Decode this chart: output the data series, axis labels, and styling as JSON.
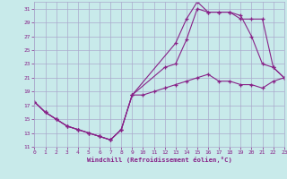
{
  "xlabel": "Windchill (Refroidissement éolien,°C)",
  "bg_color": "#c8eaea",
  "grid_color": "#aaaacc",
  "line_color": "#882288",
  "xlim": [
    0,
    23
  ],
  "ylim": [
    11,
    32
  ],
  "xticks": [
    0,
    1,
    2,
    3,
    4,
    5,
    6,
    7,
    8,
    9,
    10,
    11,
    12,
    13,
    14,
    15,
    16,
    17,
    18,
    19,
    20,
    21,
    22,
    23
  ],
  "yticks": [
    11,
    13,
    15,
    17,
    19,
    21,
    23,
    25,
    27,
    29,
    31
  ],
  "line1_x": [
    0,
    1,
    2,
    3,
    4,
    5,
    6,
    7,
    8,
    9,
    13,
    14,
    15,
    16,
    17,
    18,
    19,
    20,
    21,
    22,
    23
  ],
  "line1_y": [
    17.5,
    16.0,
    15.0,
    14.0,
    13.5,
    13.0,
    12.5,
    12.0,
    13.5,
    18.5,
    26.0,
    29.5,
    32.0,
    30.5,
    30.5,
    30.5,
    29.5,
    29.5,
    29.5,
    22.5,
    21.0
  ],
  "line2_x": [
    0,
    1,
    2,
    3,
    4,
    5,
    6,
    7,
    8,
    9,
    12,
    13,
    14,
    15,
    16,
    17,
    18,
    19,
    20,
    21,
    22,
    23
  ],
  "line2_y": [
    17.5,
    16.0,
    15.0,
    14.0,
    13.5,
    13.0,
    12.5,
    12.0,
    13.5,
    18.5,
    22.5,
    23.0,
    26.5,
    31.0,
    30.5,
    30.5,
    30.5,
    30.0,
    27.0,
    23.0,
    22.5,
    21.0
  ],
  "line3_x": [
    0,
    1,
    2,
    3,
    4,
    5,
    6,
    7,
    8,
    9,
    10,
    11,
    12,
    13,
    14,
    15,
    16,
    17,
    18,
    19,
    20,
    21,
    22,
    23
  ],
  "line3_y": [
    17.5,
    16.0,
    15.0,
    14.0,
    13.5,
    13.0,
    12.5,
    12.0,
    13.5,
    18.5,
    18.5,
    19.0,
    19.5,
    20.0,
    20.5,
    21.0,
    21.5,
    20.5,
    20.5,
    20.0,
    20.0,
    19.5,
    20.5,
    21.0
  ]
}
